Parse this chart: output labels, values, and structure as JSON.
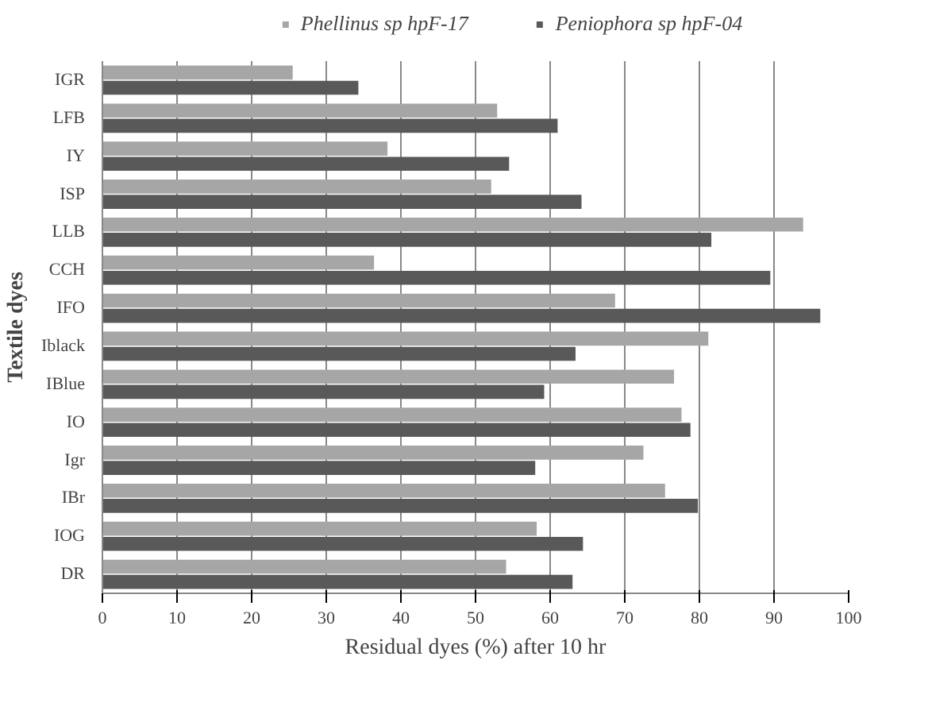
{
  "chart_data": {
    "type": "bar",
    "orientation": "horizontal",
    "xlabel": "Residual dyes (%) after 10 hr",
    "ylabel": "Textile dyes",
    "categories": [
      "IGR",
      "LFB",
      "IY",
      "ISP",
      "LLB",
      "CCH",
      "IFO",
      "Iblack",
      "IBlue",
      "IO",
      "Igr",
      "IBr",
      "IOG",
      "DR"
    ],
    "series": [
      {
        "name": "Phellinus sp hpF-17",
        "color": "#a6a6a6",
        "values": [
          25.5,
          52.9,
          38.2,
          52.1,
          93.9,
          36.4,
          68.7,
          81.2,
          76.6,
          77.6,
          72.5,
          75.4,
          58.2,
          54.1
        ]
      },
      {
        "name": "Peniophora sp hpF-04",
        "color": "#595959",
        "values": [
          34.3,
          61.0,
          54.5,
          64.2,
          81.6,
          89.5,
          96.2,
          63.4,
          59.2,
          78.8,
          58.0,
          79.8,
          64.4,
          63.0
        ]
      }
    ],
    "xlim": [
      0,
      100
    ],
    "xticks": [
      0,
      10,
      20,
      30,
      40,
      50,
      60,
      70,
      80,
      90,
      100
    ],
    "grid": "x",
    "legend": "top"
  }
}
